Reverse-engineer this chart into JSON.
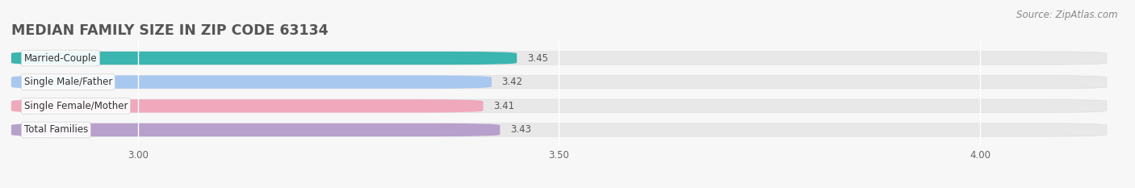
{
  "title": "MEDIAN FAMILY SIZE IN ZIP CODE 63134",
  "source": "Source: ZipAtlas.com",
  "categories": [
    "Married-Couple",
    "Single Male/Father",
    "Single Female/Mother",
    "Total Families"
  ],
  "values": [
    3.45,
    3.42,
    3.41,
    3.43
  ],
  "bar_colors": [
    "#3ab5b0",
    "#a8c8f0",
    "#f0a8bc",
    "#b8a0cc"
  ],
  "xlim": [
    2.85,
    4.15
  ],
  "xticks": [
    3.0,
    3.5,
    4.0
  ],
  "background_color": "#f7f7f7",
  "bar_bg_color": "#e8e8e8",
  "title_fontsize": 12.5,
  "label_fontsize": 8.5,
  "value_fontsize": 8.5,
  "source_fontsize": 8.5,
  "bar_height": 0.55,
  "bar_gap": 1.0
}
